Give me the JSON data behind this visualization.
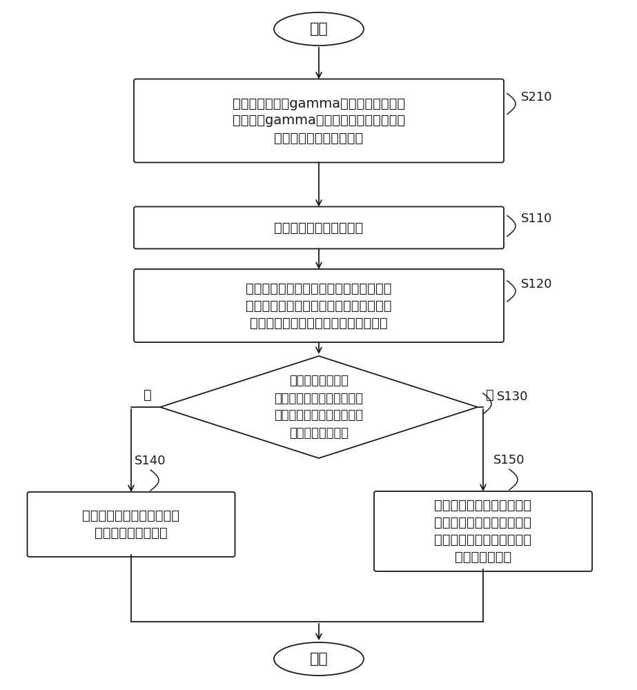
{
  "bg_color": "#ffffff",
  "line_color": "#1a1a1a",
  "text_color": "#1a1a1a",
  "start_text": "开始",
  "end_text": "结束",
  "s210_text": "对显示面板进行gamma参数调整，并根据\n调整后的gamma参数确定第一显示区域光\n学数据补偿参数的初始值",
  "s110_text": "获取显示面板的光学数据",
  "s120_text": "获取显示从显示面板的光学数据中确定第\n一显示区对应的第一光学数据和第二显示\n区对应的第二光学数据面板的光学数据",
  "s130_text": "计算第一光学数据\n和第二光学数据的光学数据\n差异，并判断光学数据差异\n是否在设定范围内",
  "s140_text": "调整显示面板的第一显示区\n域光学数据补偿参数",
  "s150_text": "将调整后的第一显示区域光\n学补偿参数写入显示面板中\n和第一显示区域光学补偿功\n能对应的寄存器",
  "no_text": "否",
  "yes_text": "是",
  "label_s210": "S210",
  "label_s110": "S110",
  "label_s120": "S120",
  "label_s130": "S130",
  "label_s140": "S140",
  "label_s150": "S150"
}
